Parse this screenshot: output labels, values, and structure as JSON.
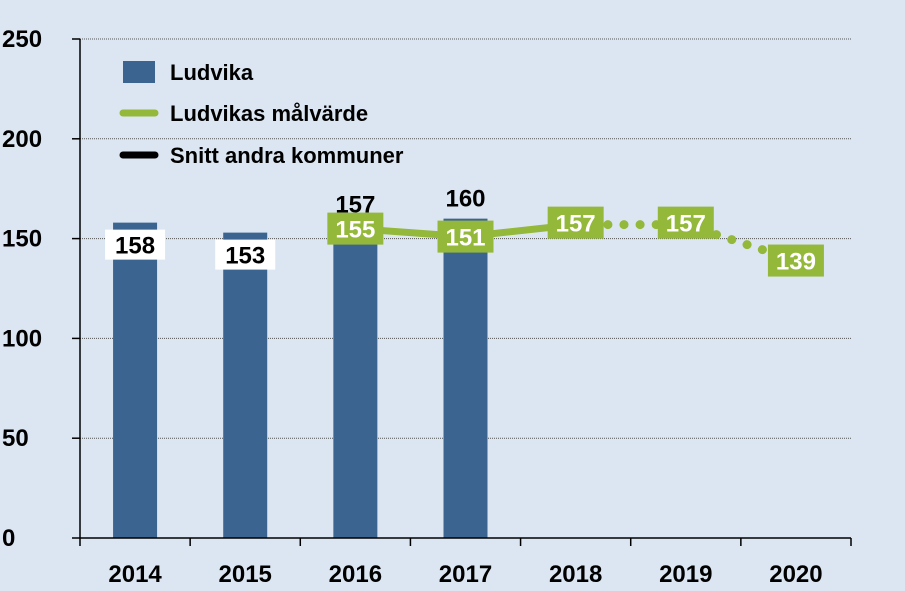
{
  "chart_data": {
    "type": "bar",
    "categories": [
      "2014",
      "2015",
      "2016",
      "2017",
      "2018",
      "2019",
      "2020"
    ],
    "y_ticks": [
      "0",
      "50",
      "100",
      "150",
      "200",
      "250"
    ],
    "ylim": [
      0,
      250
    ],
    "grid": true,
    "legend_position": "top-left",
    "series": [
      {
        "name": "Ludvika",
        "kind": "bar",
        "color": "#3b6490",
        "values": [
          158,
          153,
          157,
          160,
          null,
          null,
          null
        ]
      },
      {
        "name": "Ludvikas målvärde",
        "kind": "line",
        "color": "#93b83a",
        "values": [
          null,
          null,
          155,
          151,
          157,
          157,
          139
        ],
        "dotted_after": "2018"
      },
      {
        "name": "Snitt andra kommuner",
        "kind": "line",
        "color": "#000000",
        "values": [
          null,
          null,
          null,
          null,
          null,
          null,
          null
        ]
      }
    ]
  }
}
